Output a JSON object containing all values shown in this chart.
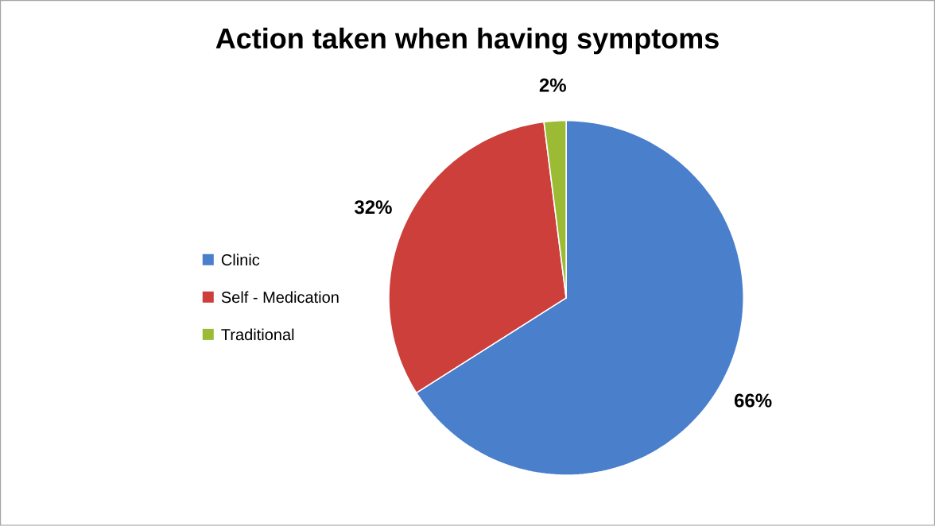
{
  "chart_data": {
    "type": "pie",
    "title": "Action taken when having symptoms",
    "categories": [
      "Clinic",
      "Self - Medication",
      "Traditional"
    ],
    "values": [
      66,
      32,
      2
    ],
    "colors": [
      "#4a7fcc",
      "#cc3f3a",
      "#9bbb35"
    ],
    "value_labels": [
      "66%",
      "32%",
      "2%"
    ],
    "legend": "left"
  }
}
